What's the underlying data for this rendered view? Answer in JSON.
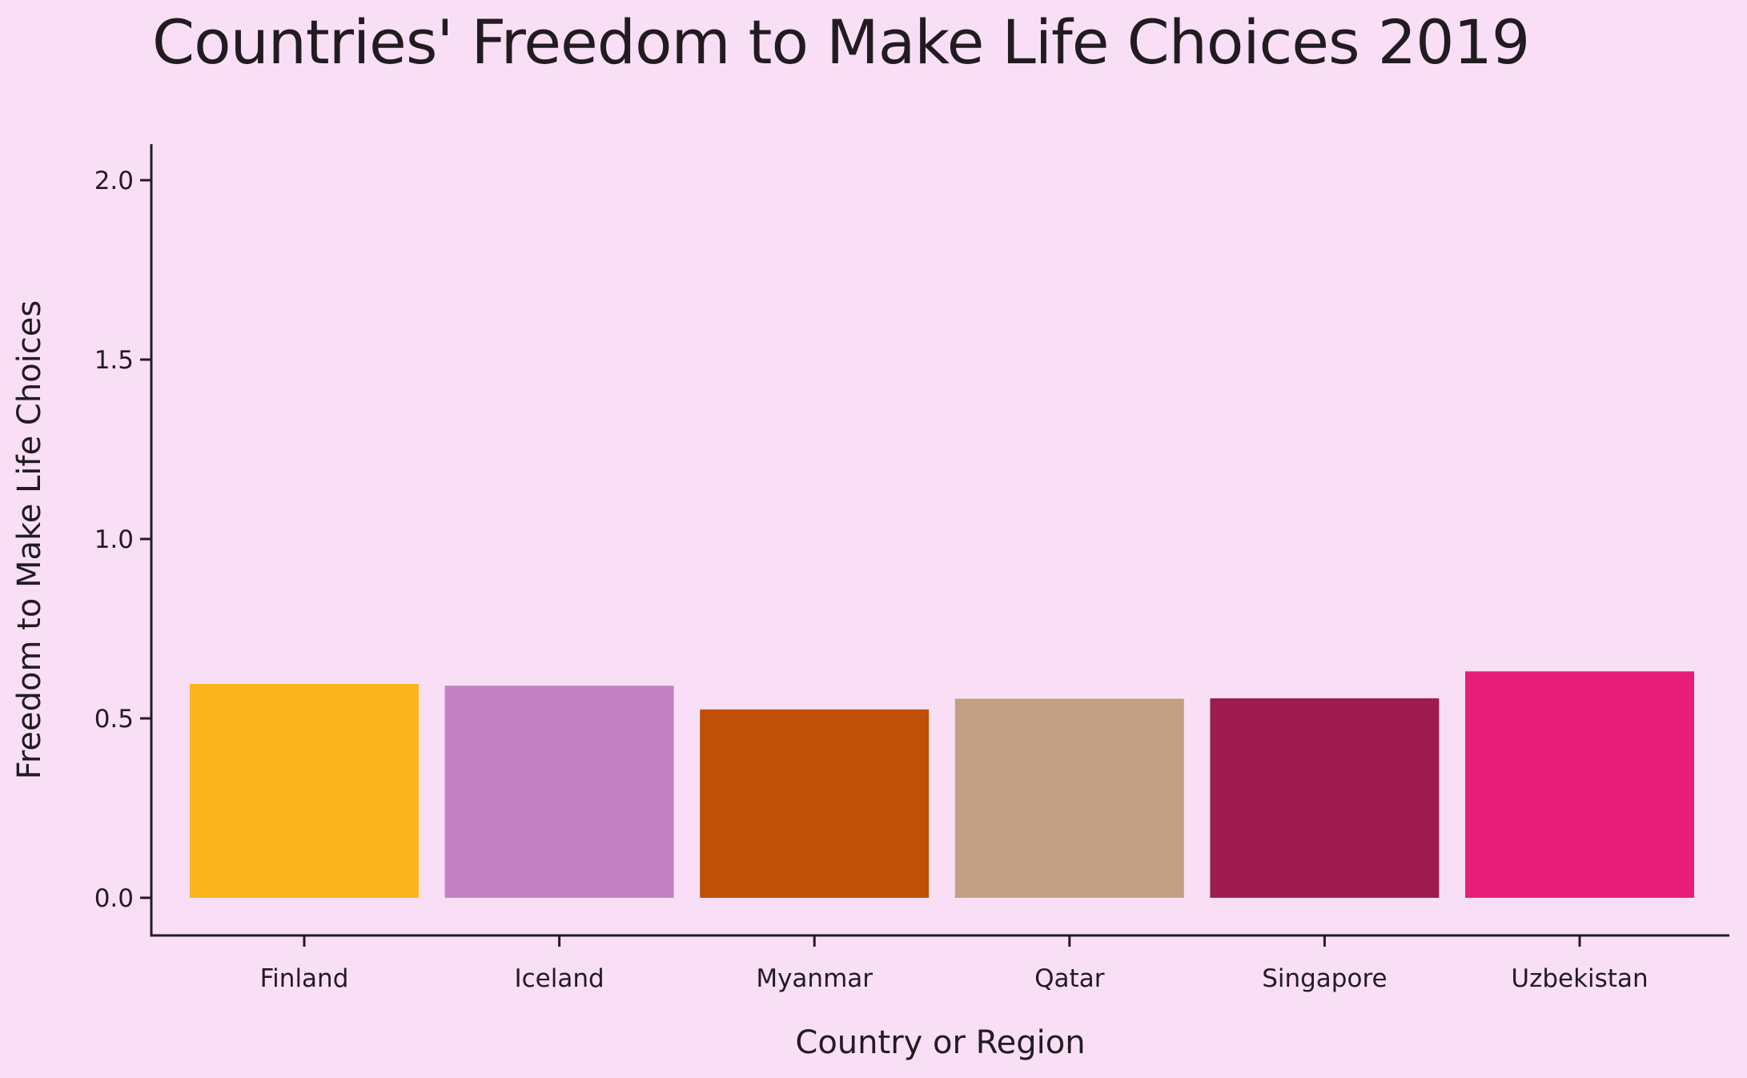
{
  "chart_data": {
    "type": "bar",
    "title": "Countries' Freedom to Make Life Choices 2019",
    "xlabel": "Country or Region",
    "ylabel": "Freedom to Make Life Choices",
    "categories": [
      "Finland",
      "Iceland",
      "Myanmar",
      "Qatar",
      "Singapore",
      "Uzbekistan"
    ],
    "values": [
      0.596,
      0.591,
      0.525,
      0.555,
      0.556,
      0.631
    ],
    "colors": [
      "#FCB41F",
      "#C282C4",
      "#C05005",
      "#C1A084",
      "#9E1B4F",
      "#E71E79"
    ],
    "ylim": [
      -0.1,
      2.1
    ],
    "yticks": [
      0.0,
      0.5,
      1.0,
      1.5,
      2.0
    ],
    "ytick_labels": [
      "0.0",
      "0.5",
      "1.0",
      "1.5",
      "2.0"
    ],
    "grid": false,
    "legend": "none",
    "background": "#F9DFF5"
  }
}
